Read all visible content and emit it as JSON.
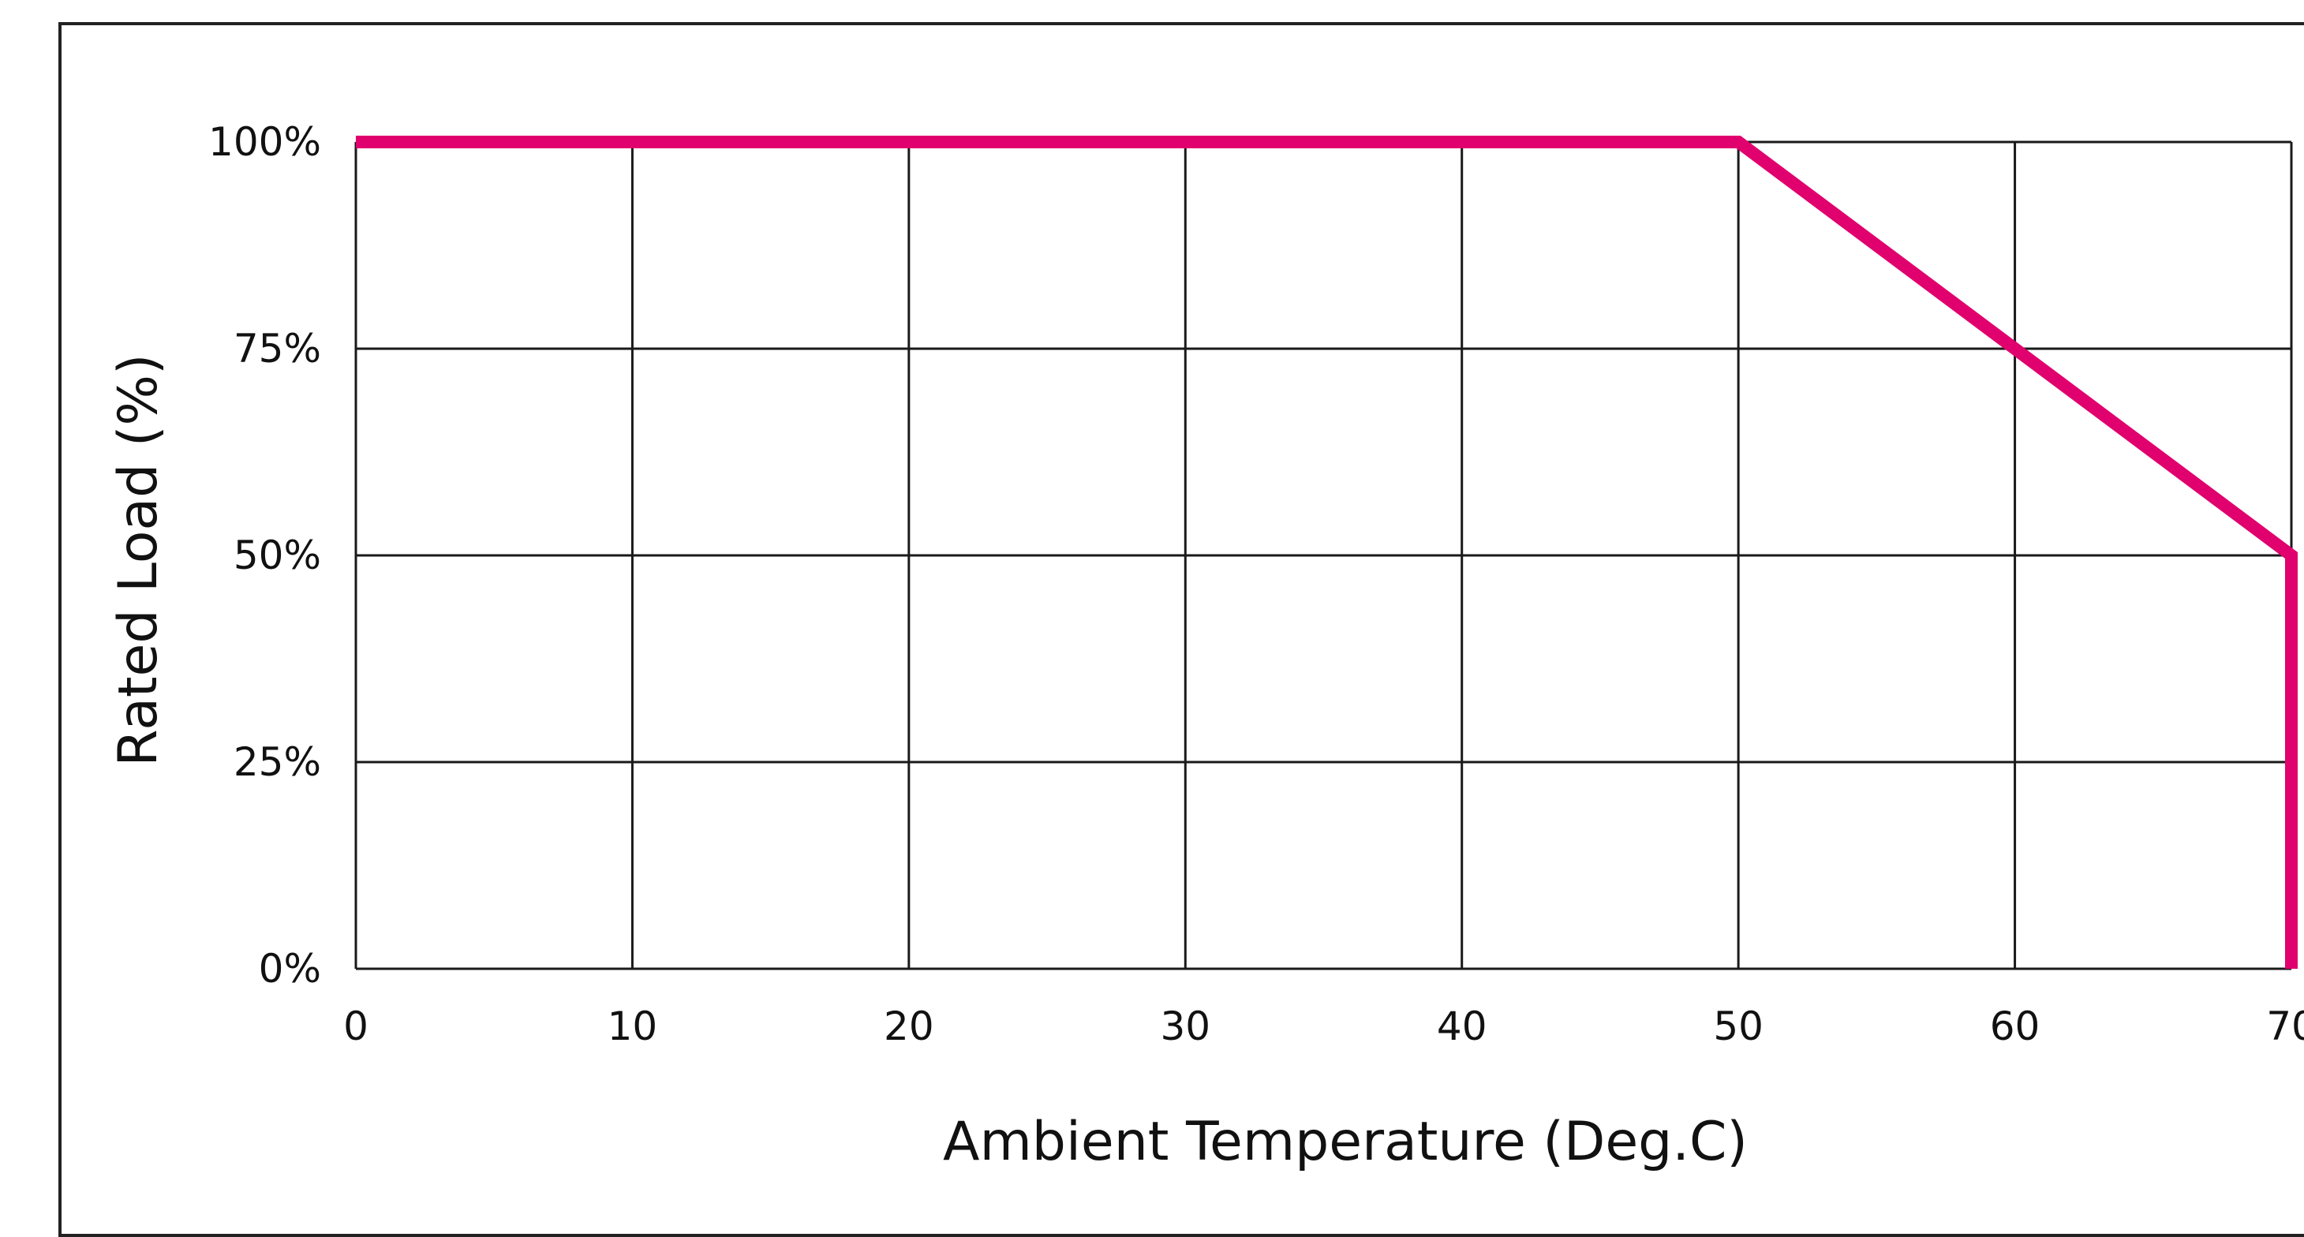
{
  "chart_data": {
    "type": "line",
    "xlabel": "Ambient Temperature (Deg.C)",
    "ylabel": "Rated Load (%)",
    "x_ticks": [
      "0",
      "10",
      "20",
      "30",
      "40",
      "50",
      "60",
      "70"
    ],
    "y_ticks": [
      "0%",
      "25%",
      "50%",
      "75%",
      "100%"
    ],
    "xlim": [
      0,
      70
    ],
    "ylim": [
      0,
      100
    ],
    "grid": true,
    "series": [
      {
        "color": "#e0006e",
        "points": [
          {
            "x": 0,
            "y": 100
          },
          {
            "x": 50,
            "y": 100
          },
          {
            "x": 60,
            "y": 75
          },
          {
            "x": 70,
            "y": 50
          },
          {
            "x": 70,
            "y": 0
          }
        ]
      }
    ]
  }
}
